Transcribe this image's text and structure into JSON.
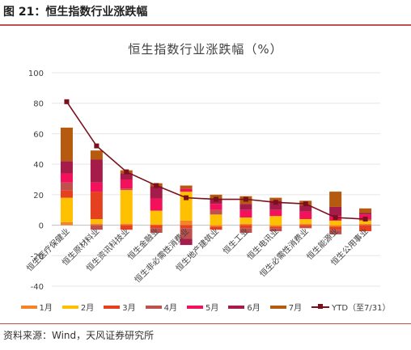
{
  "figure_title": "图 21：恒生指数行业涨跌幅",
  "source": "资料来源：Wind，天风证券研究所",
  "chart_data": {
    "type": "bar",
    "title": "恒生指数行业涨跌幅（%）",
    "ylim": [
      -40,
      100
    ],
    "yticks": [
      -40,
      -20,
      0,
      20,
      40,
      60,
      80,
      100
    ],
    "grid": true,
    "legend_position": "bottom",
    "categories": [
      "恒生医疗保健业",
      "恒生原材料业",
      "恒生资讯科技业",
      "恒生金融业",
      "恒生非必需性消费业",
      "恒生地产建筑业",
      "恒生工业",
      "恒生电讯业",
      "恒生必需性消费业",
      "恒生能源业",
      "恒生公用事业"
    ],
    "series": [
      {
        "name": "1月",
        "color": "#f58426",
        "values": [
          2,
          1,
          1,
          0.5,
          3,
          -1,
          1,
          -1,
          1,
          -1,
          1
        ]
      },
      {
        "name": "2月",
        "color": "#ffc000",
        "values": [
          16,
          3,
          22,
          9,
          19,
          7,
          4,
          6,
          3,
          3,
          2
        ]
      },
      {
        "name": "3月",
        "color": "#e5401f",
        "values": [
          5,
          18,
          -3,
          -2,
          -2,
          -2,
          -2,
          -1,
          -1,
          -2,
          -4
        ]
      },
      {
        "name": "4月",
        "color": "#c0504d",
        "values": [
          5,
          -3,
          1,
          -3,
          -7,
          3,
          -3,
          -2,
          -1,
          -3,
          1
        ]
      },
      {
        "name": "5月",
        "color": "#f2115a",
        "values": [
          6,
          6,
          6,
          8,
          2,
          4,
          5,
          4,
          5,
          3,
          3
        ]
      },
      {
        "name": "6月",
        "color": "#a51c4a",
        "values": [
          8,
          15,
          4,
          8,
          -4,
          3,
          4,
          6,
          4,
          6,
          1
        ]
      },
      {
        "name": "7月",
        "color": "#b65a0f",
        "values": [
          22,
          6,
          2,
          2,
          2,
          3,
          5,
          2,
          3,
          10,
          3
        ]
      }
    ],
    "ytd": {
      "name": "YTD（至7/31）",
      "color": "#7b0f1c",
      "values": [
        81,
        52,
        35,
        26,
        18,
        17,
        17,
        15,
        14,
        5,
        4
      ]
    }
  }
}
